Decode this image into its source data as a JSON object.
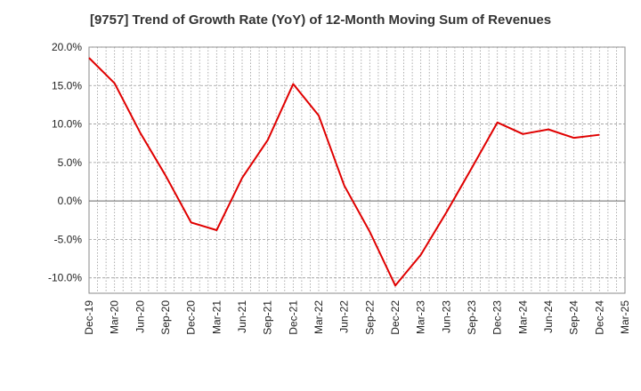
{
  "chart_data": {
    "type": "line",
    "title": "[9757]  Trend of Growth Rate (YoY) of 12-Month Moving Sum of Revenues",
    "xlabel": "",
    "ylabel": "",
    "ylim": [
      -12,
      20
    ],
    "yticks": [
      20,
      15,
      10,
      5,
      0,
      -5,
      -10
    ],
    "ytick_labels": [
      "20.0%",
      "15.0%",
      "10.0%",
      "5.0%",
      "0.0%",
      "-5.0%",
      "-10.0%"
    ],
    "x_labels": [
      "Dec-19",
      "Mar-20",
      "Jun-20",
      "Sep-20",
      "Dec-20",
      "Mar-21",
      "Jun-21",
      "Sep-21",
      "Dec-21",
      "Mar-22",
      "Jun-22",
      "Sep-22",
      "Dec-22",
      "Mar-23",
      "Jun-23",
      "Sep-23",
      "Dec-23",
      "Mar-24",
      "Jun-24",
      "Sep-24",
      "Dec-24",
      "Mar-25"
    ],
    "grid": true,
    "legend": "none",
    "series": [
      {
        "color": "#e00000",
        "x": [
          "Dec-19",
          "Mar-20",
          "Jun-20",
          "Sep-20",
          "Dec-20",
          "Mar-21",
          "Jun-21",
          "Sep-21",
          "Dec-21",
          "Mar-22",
          "Jun-22",
          "Sep-22",
          "Dec-22",
          "Mar-23",
          "Jun-23",
          "Sep-23",
          "Dec-23",
          "Mar-24",
          "Jun-24",
          "Sep-24",
          "Dec-24"
        ],
        "values": [
          18.6,
          15.3,
          8.9,
          3.3,
          -2.8,
          -3.8,
          3.0,
          7.9,
          15.2,
          11.1,
          2.0,
          -4.0,
          -11.0,
          -7.0,
          -1.5,
          4.3,
          10.2,
          8.7,
          9.3,
          8.2,
          8.6
        ]
      }
    ]
  }
}
